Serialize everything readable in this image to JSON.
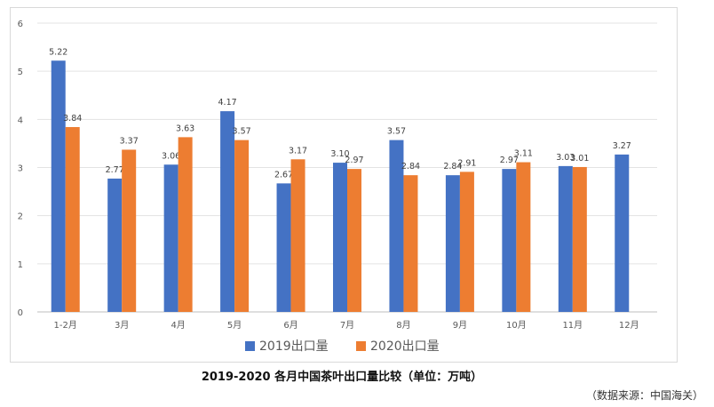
{
  "chart_data": {
    "type": "bar",
    "title": "",
    "categories": [
      "1-2月",
      "3月",
      "4月",
      "5月",
      "6月",
      "7月",
      "8月",
      "9月",
      "10月",
      "11月",
      "12月"
    ],
    "series": [
      {
        "name": "2019出口量",
        "color": "#4472C4",
        "values": [
          5.22,
          2.77,
          3.06,
          4.17,
          2.67,
          3.1,
          3.57,
          2.84,
          2.97,
          3.03,
          3.27
        ],
        "labels": [
          "5.22",
          "2.77",
          "3.06",
          "4.17",
          "2.67",
          "3.10",
          "3.57",
          "2.84",
          "2.97",
          "3.03",
          "3.27"
        ]
      },
      {
        "name": "2020出口量",
        "color": "#ED7D31",
        "values": [
          3.84,
          3.37,
          3.63,
          3.57,
          3.17,
          2.97,
          2.84,
          2.91,
          3.11,
          3.01,
          null
        ],
        "labels": [
          "3.84",
          "3.37",
          "3.63",
          "3.57",
          "3.17",
          "2.97",
          "2.84",
          "2.91",
          "3.11",
          "3.01",
          null
        ]
      }
    ],
    "ylim": [
      0,
      6
    ],
    "yticks": [
      "0",
      "1",
      "2",
      "3",
      "4",
      "5",
      "6"
    ],
    "xlabel": "",
    "ylabel": "",
    "grid": true,
    "legend": "bottom-center"
  },
  "caption": "2019-2020 各月中国茶叶出口量比较（单位：万吨）",
  "source": "（数据来源：中国海关）"
}
